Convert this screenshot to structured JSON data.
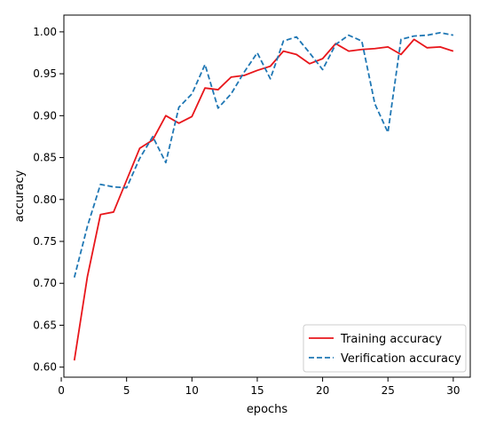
{
  "chart_data": {
    "type": "line",
    "title": "",
    "xlabel": "epochs",
    "ylabel": "accuracy",
    "xlim": [
      0.2,
      31.3
    ],
    "ylim": [
      0.588,
      1.02
    ],
    "xticks": [
      0,
      5,
      10,
      15,
      20,
      25,
      30
    ],
    "yticks": [
      0.6,
      0.65,
      0.7,
      0.75,
      0.8,
      0.85,
      0.9,
      0.95,
      1.0
    ],
    "grid": false,
    "legend_position": "lower-right",
    "x": [
      1,
      2,
      3,
      4,
      5,
      6,
      7,
      8,
      9,
      10,
      11,
      12,
      13,
      14,
      15,
      16,
      17,
      18,
      19,
      20,
      21,
      22,
      23,
      24,
      25,
      26,
      27,
      28,
      29,
      30
    ],
    "series": [
      {
        "name": "Training accuracy",
        "color": "#e8161b",
        "dash": "solid",
        "values": [
          0.608,
          0.708,
          0.782,
          0.785,
          0.823,
          0.861,
          0.871,
          0.9,
          0.891,
          0.899,
          0.933,
          0.931,
          0.946,
          0.948,
          0.954,
          0.959,
          0.977,
          0.973,
          0.962,
          0.968,
          0.986,
          0.977,
          0.979,
          0.98,
          0.982,
          0.973,
          0.991,
          0.981,
          0.982,
          0.977
        ]
      },
      {
        "name": "Verification accuracy",
        "color": "#1f77b4",
        "dash": "dashed",
        "values": [
          0.707,
          0.768,
          0.818,
          0.815,
          0.814,
          0.849,
          0.875,
          0.844,
          0.91,
          0.926,
          0.961,
          0.909,
          0.926,
          0.952,
          0.975,
          0.944,
          0.989,
          0.994,
          0.975,
          0.955,
          0.985,
          0.996,
          0.989,
          0.914,
          0.88,
          0.991,
          0.995,
          0.996,
          0.999,
          0.996
        ]
      }
    ]
  }
}
